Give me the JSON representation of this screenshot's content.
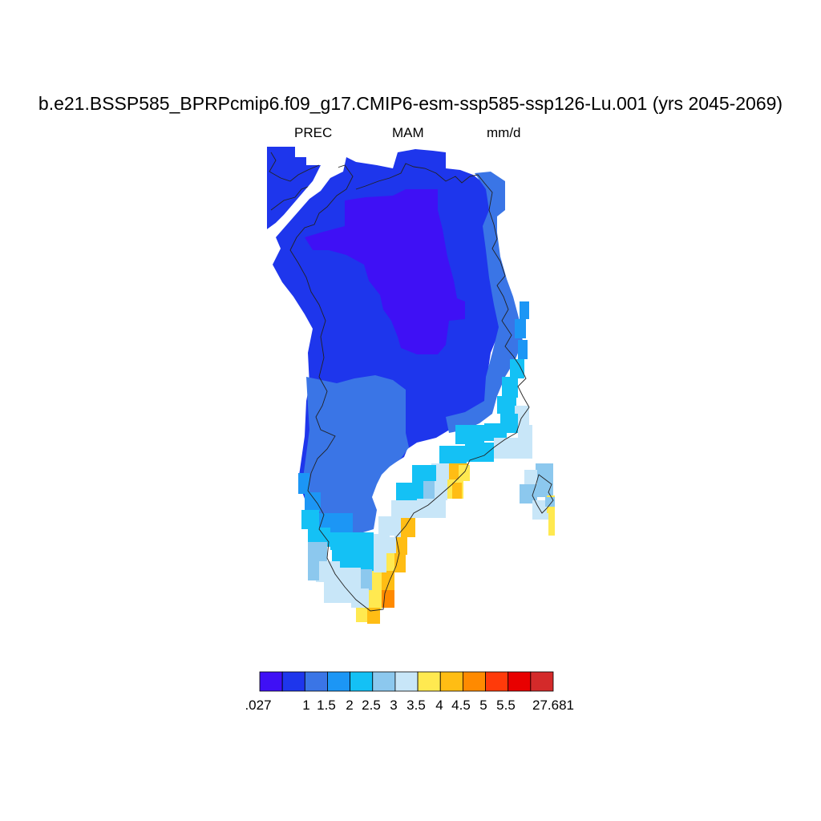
{
  "title": "b.e21.BSSP585_BPRPcmip6.f09_g17.CMIP6-esm-ssp585-ssp126-Lu.001 (yrs 2045-2069)",
  "subtitle_left": "PREC",
  "subtitle_center": "MAM",
  "subtitle_right": "mm/d",
  "colorbar": {
    "colors": [
      "#3f10f5",
      "#1e36ec",
      "#3a75e6",
      "#1c96f5",
      "#14c1f5",
      "#8cc8ee",
      "#c8e6f8",
      "#ffe950",
      "#ffbd14",
      "#ff8a00",
      "#ff3a0a",
      "#e80000",
      "#d42a2a"
    ],
    "labels": [
      ".027",
      "1",
      "1.5",
      "2",
      "2.5",
      "3",
      "3.5",
      "4",
      "4.5",
      "5",
      "5.5",
      "27.681"
    ]
  }
}
